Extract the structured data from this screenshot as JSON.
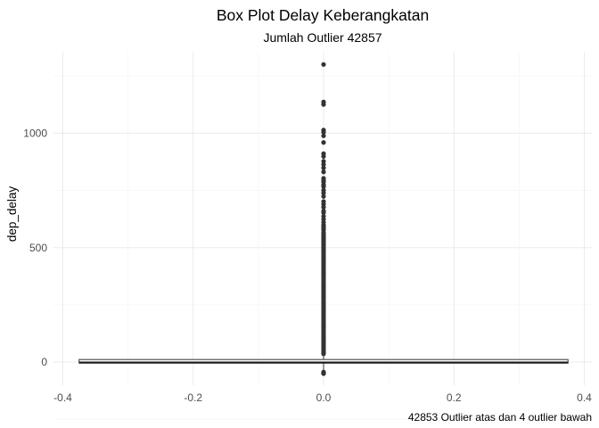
{
  "chart_data": {
    "type": "box",
    "title": "Box Plot Delay Keberangkatan",
    "subtitle": "Jumlah Outlier 42857",
    "ylabel": "dep_delay",
    "xlabel": "",
    "caption": "42853 Outlier atas dan 4 outlier bawah",
    "xlim": [
      -0.4,
      0.4
    ],
    "ylim": [
      -50,
      1300
    ],
    "x_ticks": [
      -0.4,
      -0.2,
      0.0,
      0.2,
      0.4
    ],
    "x_tick_labels": [
      "-0.4",
      "-0.2",
      "0.0",
      "0.2",
      "0.4"
    ],
    "y_ticks": [
      0,
      500,
      1000
    ],
    "y_tick_labels": [
      "0",
      "500",
      "1000"
    ],
    "grid": true,
    "box": {
      "x": 0,
      "x_range": [
        -0.375,
        0.375
      ],
      "q1": -5,
      "median": -2,
      "q3": 11,
      "whisker_low": -43,
      "whisker_high": 35
    },
    "outliers": [
      1301,
      1137,
      1126,
      1014,
      1005,
      989,
      960,
      911,
      899,
      878,
      864,
      849,
      831,
      803,
      794,
      787,
      775,
      767,
      751,
      739,
      724,
      702,
      690,
      677,
      660,
      653,
      637,
      624,
      611,
      599,
      592,
      584,
      577,
      566,
      560,
      553,
      547,
      541,
      535,
      528,
      521,
      515,
      508,
      500,
      493,
      486,
      478,
      470,
      462,
      455,
      447,
      439,
      431,
      423,
      415,
      407,
      399,
      391,
      383,
      375,
      367,
      359,
      351,
      343,
      335,
      327,
      319,
      311,
      303,
      295,
      287,
      279,
      271,
      263,
      255,
      247,
      239,
      231,
      223,
      215,
      207,
      199,
      191,
      183,
      175,
      167,
      159,
      151,
      143,
      135,
      127,
      119,
      111,
      103,
      95,
      87,
      79,
      71,
      63,
      55,
      47,
      40,
      36,
      -44,
      -46,
      -48,
      -51
    ]
  }
}
